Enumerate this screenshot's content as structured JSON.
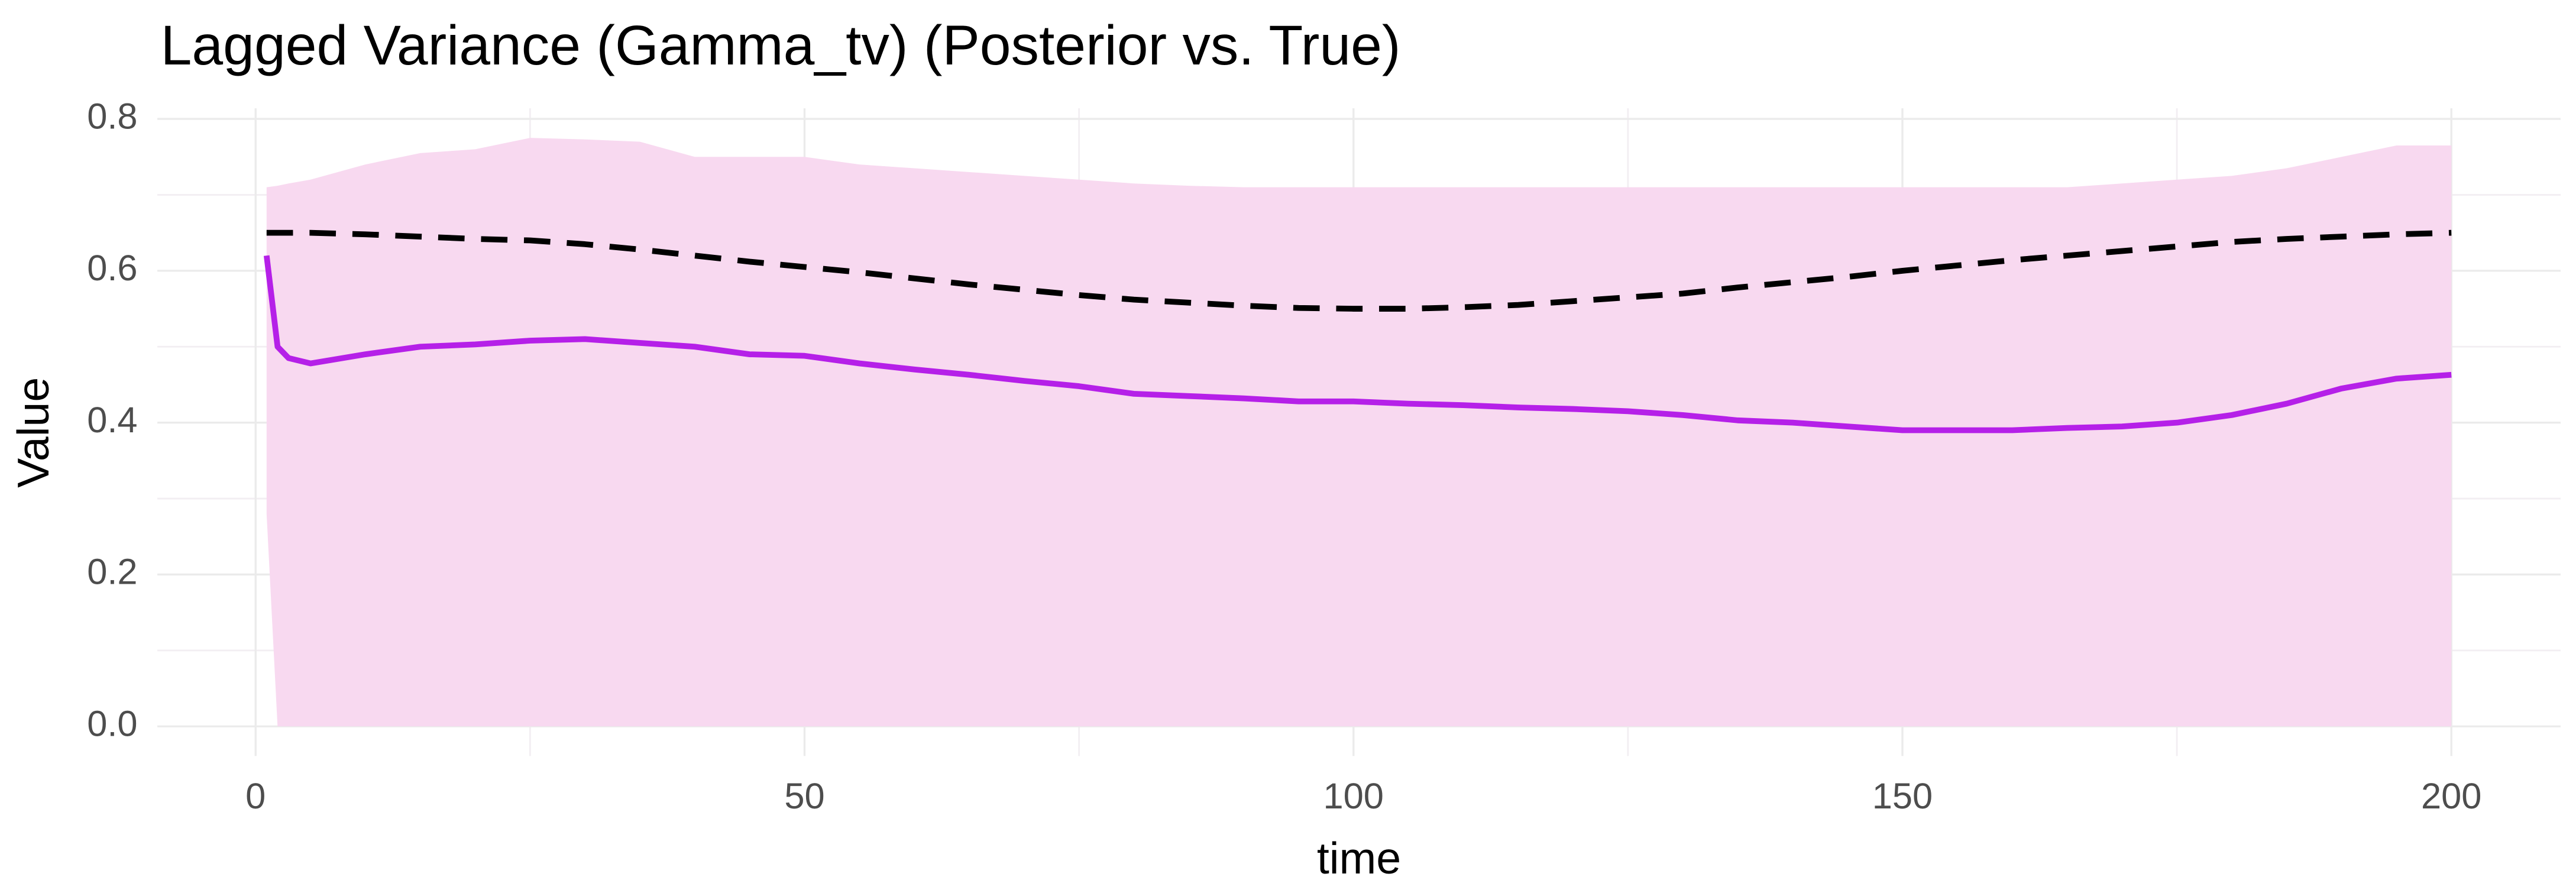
{
  "chart_data": {
    "type": "line",
    "title": "Lagged Variance (Gamma_tv) (Posterior vs. True)",
    "x_label": "time",
    "y_label": "Value",
    "x": [
      1,
      2,
      3,
      5,
      10,
      15,
      20,
      25,
      30,
      35,
      40,
      45,
      50,
      55,
      60,
      65,
      70,
      75,
      80,
      85,
      90,
      95,
      100,
      105,
      110,
      115,
      120,
      125,
      130,
      135,
      140,
      145,
      150,
      155,
      160,
      165,
      170,
      175,
      180,
      185,
      190,
      195,
      200
    ],
    "band": {
      "color": "#f8d9f0",
      "upper": [
        0.71,
        0.712,
        0.715,
        0.72,
        0.74,
        0.755,
        0.76,
        0.775,
        0.773,
        0.77,
        0.75,
        0.75,
        0.75,
        0.74,
        0.735,
        0.73,
        0.725,
        0.72,
        0.715,
        0.712,
        0.71,
        0.71,
        0.71,
        0.71,
        0.71,
        0.71,
        0.71,
        0.71,
        0.71,
        0.71,
        0.71,
        0.71,
        0.71,
        0.71,
        0.71,
        0.71,
        0.715,
        0.72,
        0.725,
        0.735,
        0.75,
        0.765,
        0.765
      ],
      "lower": [
        0.28,
        0.0,
        0.0,
        0.0,
        0.0,
        0.0,
        0.0,
        0.0,
        0.0,
        0.0,
        0.0,
        0.0,
        0.0,
        0.0,
        0.0,
        0.0,
        0.0,
        0.0,
        0.0,
        0.0,
        0.0,
        0.0,
        0.0,
        0.0,
        0.0,
        0.0,
        0.0,
        0.0,
        0.0,
        0.0,
        0.0,
        0.0,
        0.0,
        0.0,
        0.0,
        0.0,
        0.0,
        0.0,
        0.0,
        0.0,
        0.0,
        0.0,
        0.0
      ]
    },
    "series": [
      {
        "color": "#000000",
        "dashed": true,
        "values": [
          0.65,
          0.65,
          0.65,
          0.65,
          0.648,
          0.645,
          0.642,
          0.64,
          0.635,
          0.628,
          0.62,
          0.612,
          0.605,
          0.598,
          0.59,
          0.582,
          0.575,
          0.568,
          0.562,
          0.558,
          0.554,
          0.551,
          0.55,
          0.55,
          0.552,
          0.555,
          0.56,
          0.565,
          0.57,
          0.578,
          0.585,
          0.592,
          0.6,
          0.607,
          0.614,
          0.62,
          0.626,
          0.632,
          0.638,
          0.642,
          0.645,
          0.648,
          0.65
        ]
      },
      {
        "color": "#b520e8",
        "dashed": false,
        "values": [
          0.62,
          0.5,
          0.485,
          0.478,
          0.49,
          0.5,
          0.503,
          0.508,
          0.51,
          0.505,
          0.5,
          0.49,
          0.488,
          0.478,
          0.47,
          0.463,
          0.455,
          0.448,
          0.438,
          0.435,
          0.432,
          0.428,
          0.428,
          0.425,
          0.423,
          0.42,
          0.418,
          0.415,
          0.41,
          0.403,
          0.4,
          0.395,
          0.39,
          0.39,
          0.39,
          0.393,
          0.395,
          0.4,
          0.41,
          0.425,
          0.445,
          0.458,
          0.463
        ]
      }
    ],
    "xlim": [
      -8.95,
      209.95
    ],
    "ylim": [
      -0.039,
      0.814
    ],
    "xticks": [
      0,
      50,
      100,
      150,
      200
    ],
    "yticks": [
      {
        "value": 0,
        "label": "0.0"
      },
      {
        "value": 0.2,
        "label": "0.2"
      },
      {
        "value": 0.4,
        "label": "0.4"
      },
      {
        "value": 0.6,
        "label": "0.6"
      },
      {
        "value": 0.8,
        "label": "0.8"
      }
    ],
    "grid": true,
    "minor_grid": true
  }
}
